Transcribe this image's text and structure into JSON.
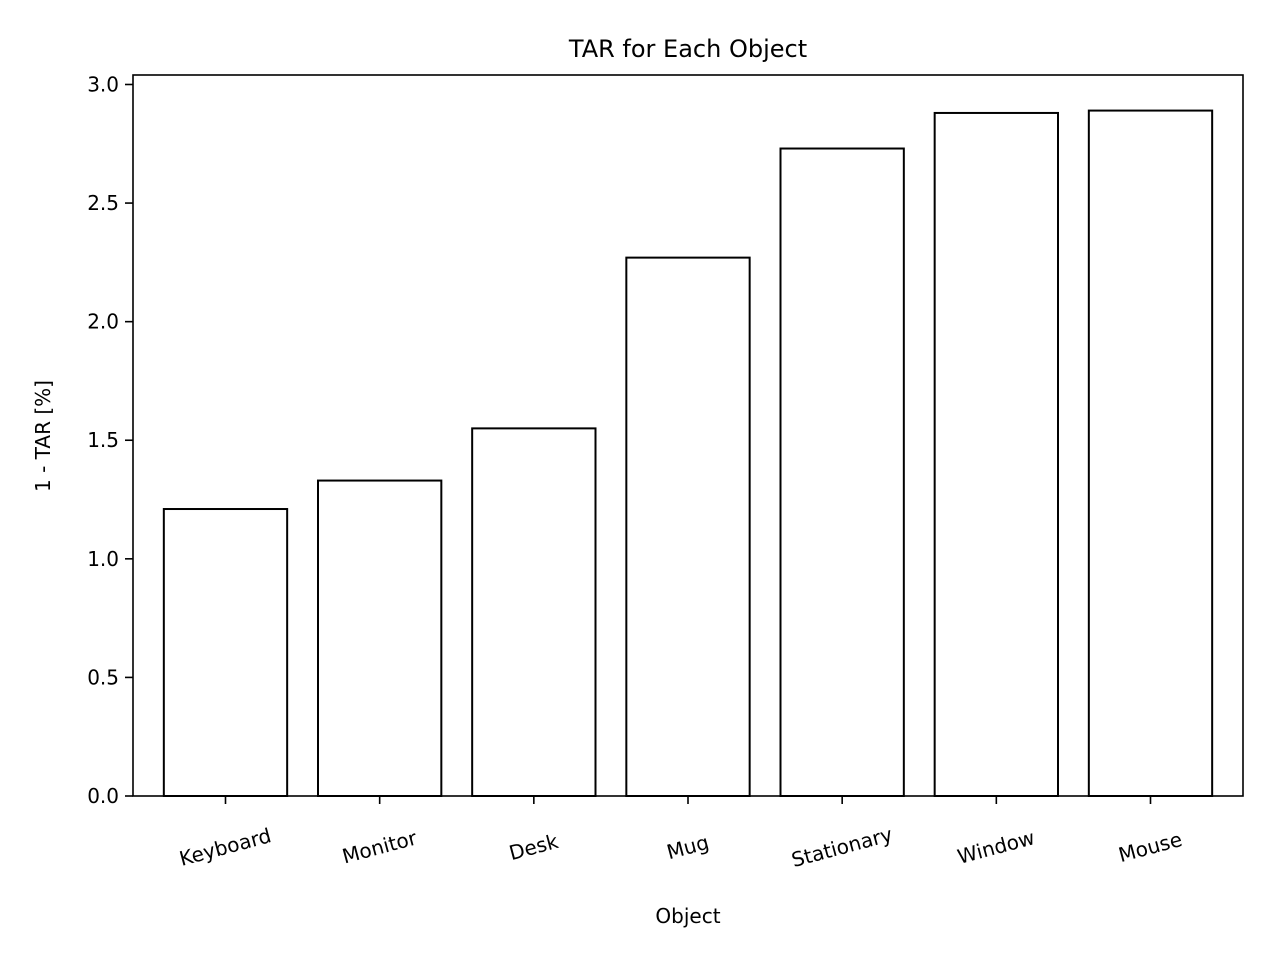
{
  "chart_data": {
    "type": "bar",
    "title": "TAR for Each Object",
    "xlabel": "Object",
    "ylabel": "1 - TAR [%]",
    "categories": [
      "Keyboard",
      "Monitor",
      "Desk",
      "Mug",
      "Stationary",
      "Window",
      "Mouse"
    ],
    "values": [
      1.21,
      1.33,
      1.55,
      2.27,
      2.73,
      2.88,
      2.89
    ],
    "ylim": [
      0,
      3.04
    ],
    "yticks": [
      0.0,
      0.5,
      1.0,
      1.5,
      2.0,
      2.5,
      3.0
    ],
    "ytick_labels": [
      "0.0",
      "0.5",
      "1.0",
      "1.5",
      "2.0",
      "2.5",
      "3.0"
    ],
    "grid": false,
    "legend": "none",
    "colors": {
      "bar_fill": "#ffffff",
      "bar_edge": "#000000",
      "axis": "#000000"
    }
  }
}
